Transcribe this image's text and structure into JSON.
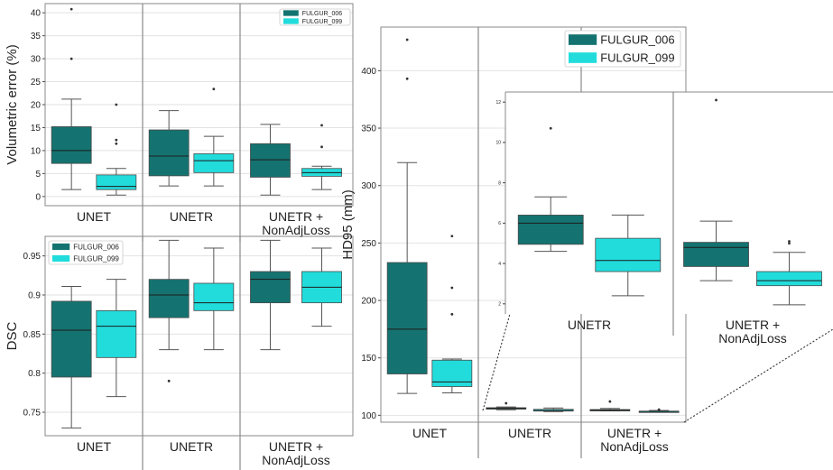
{
  "colors": {
    "s1": "#147370",
    "s2": "#22dcdc",
    "median": "#1b1b1b",
    "whisker": "#555555",
    "frame": "#888888",
    "grid": "#e2e2e2"
  },
  "chart_data": [
    {
      "type": "box",
      "ylabel": "Volumetric error (%)",
      "ylim": [
        -2,
        42
      ],
      "yticks": [
        0,
        5,
        10,
        15,
        20,
        25,
        30,
        35,
        40
      ],
      "groups": [
        "UNET",
        "UNETR",
        "UNETR +\nNonAdjLoss"
      ],
      "legend": {
        "position": "upper right",
        "entries": [
          "FULGUR_006",
          "FULGUR_099"
        ]
      },
      "series": [
        {
          "name": "FULGUR_006",
          "boxes": [
            {
              "group": "UNET",
              "whislo": 1.5,
              "q1": 7.2,
              "med": 10,
              "q3": 15.2,
              "whishi": 21.2,
              "fliers": [
                30,
                40.8
              ]
            },
            {
              "group": "UNETR",
              "whislo": 2.3,
              "q1": 4.5,
              "med": 8.8,
              "q3": 14.5,
              "whishi": 18.7,
              "fliers": []
            },
            {
              "group": "UNETR +\nNonAdjLoss",
              "whislo": 0.3,
              "q1": 4.2,
              "med": 8,
              "q3": 11.5,
              "whishi": 15.7,
              "fliers": []
            }
          ]
        },
        {
          "name": "FULGUR_099",
          "boxes": [
            {
              "group": "UNET",
              "whislo": 0.3,
              "q1": 1.5,
              "med": 2.2,
              "q3": 4.7,
              "whishi": 6.1,
              "fliers": [
                11.5,
                12.3,
                20
              ]
            },
            {
              "group": "UNETR",
              "whislo": 2.3,
              "q1": 5.2,
              "med": 7.8,
              "q3": 9.3,
              "whishi": 13.1,
              "fliers": [
                23.4
              ]
            },
            {
              "group": "UNETR +\nNonAdjLoss",
              "whislo": 1.5,
              "q1": 4.4,
              "med": 5.2,
              "q3": 6.1,
              "whishi": 6.6,
              "fliers": [
                10.8,
                15.5
              ]
            }
          ]
        }
      ]
    },
    {
      "type": "box",
      "ylabel": "DSC",
      "ylim": [
        0.72,
        0.975
      ],
      "yticks": [
        0.75,
        0.8,
        0.85,
        0.9,
        0.95
      ],
      "ytick_labels": [
        "0.75",
        "0.8",
        "0.85",
        "0.9",
        "0.95"
      ],
      "groups": [
        "UNET",
        "UNETR",
        "UNETR +\nNonAdjLoss"
      ],
      "legend": {
        "position": "upper left",
        "entries": [
          "FULGUR_006",
          "FULGUR_099"
        ]
      },
      "series": [
        {
          "name": "FULGUR_006",
          "boxes": [
            {
              "group": "UNET",
              "whislo": 0.73,
              "q1": 0.795,
              "med": 0.855,
              "q3": 0.892,
              "whishi": 0.911,
              "fliers": []
            },
            {
              "group": "UNETR",
              "whislo": 0.83,
              "q1": 0.871,
              "med": 0.9,
              "q3": 0.92,
              "whishi": 0.97,
              "fliers": [
                0.79
              ]
            },
            {
              "group": "UNETR +\nNonAdjLoss",
              "whislo": 0.83,
              "q1": 0.89,
              "med": 0.92,
              "q3": 0.93,
              "whishi": 0.97,
              "fliers": []
            }
          ]
        },
        {
          "name": "FULGUR_099",
          "boxes": [
            {
              "group": "UNET",
              "whislo": 0.77,
              "q1": 0.82,
              "med": 0.86,
              "q3": 0.88,
              "whishi": 0.92,
              "fliers": []
            },
            {
              "group": "UNETR",
              "whislo": 0.83,
              "q1": 0.88,
              "med": 0.89,
              "q3": 0.915,
              "whishi": 0.96,
              "fliers": []
            },
            {
              "group": "UNETR +\nNonAdjLoss",
              "whislo": 0.86,
              "q1": 0.89,
              "med": 0.91,
              "q3": 0.93,
              "whishi": 0.96,
              "fliers": []
            }
          ]
        }
      ]
    },
    {
      "type": "box",
      "ylabel": "HD95 (mm)",
      "ylim": [
        94,
        438
      ],
      "yticks": [
        100,
        150,
        200,
        250,
        300,
        350,
        400
      ],
      "groups": [
        "UNET",
        "UNETR",
        "UNETR +\nNonAdjLoss"
      ],
      "legend": {
        "position": "upper right",
        "entries": [
          "FULGUR_006",
          "FULGUR_099"
        ]
      },
      "series": [
        {
          "name": "FULGUR_006",
          "boxes": [
            {
              "group": "UNET",
              "whislo": 119,
              "q1": 136,
              "med": 175,
              "q3": 233,
              "whishi": 320,
              "fliers": [
                393,
                427
              ]
            },
            {
              "group": "UNETR",
              "whislo": 104.8,
              "q1": 105.4,
              "med": 106,
              "q3": 106.6,
              "whishi": 107.3,
              "fliers": [
                110.5
              ]
            },
            {
              "group": "UNETR +\nNonAdjLoss",
              "whislo": 103.8,
              "q1": 104.3,
              "med": 104.5,
              "q3": 105,
              "whishi": 106,
              "fliers": [
                112
              ]
            }
          ]
        },
        {
          "name": "FULGUR_099",
          "boxes": [
            {
              "group": "UNET",
              "whislo": 119.5,
              "q1": 125,
              "med": 129,
              "q3": 148,
              "whishi": 149,
              "fliers": [
                188,
                211,
                256
              ]
            },
            {
              "group": "UNETR",
              "whislo": 103.2,
              "q1": 103.8,
              "med": 104.1,
              "q3": 105.2,
              "whishi": 106.4,
              "fliers": []
            },
            {
              "group": "UNETR +\nNonAdjLoss",
              "whislo": 102.7,
              "q1": 103.1,
              "med": 103.3,
              "q3": 103.6,
              "whishi": 104.2,
              "fliers": [
                105
              ]
            }
          ]
        }
      ]
    },
    {
      "type": "box",
      "ylabel": "",
      "ylim": [
        1.5,
        12.5
      ],
      "yticks": [
        2,
        4,
        6,
        8,
        10,
        12
      ],
      "groups": [
        "UNETR",
        "UNETR +\nNonAdjLoss"
      ],
      "series": [
        {
          "name": "FULGUR_006",
          "boxes": [
            {
              "group": "UNETR",
              "whislo": 4.6,
              "q1": 4.95,
              "med": 6,
              "q3": 6.4,
              "whishi": 7.3,
              "fliers": [
                10.7
              ]
            },
            {
              "group": "UNETR +\nNonAdjLoss",
              "whislo": 3.15,
              "q1": 3.85,
              "med": 4.8,
              "q3": 5.05,
              "whishi": 6.1,
              "fliers": [
                12.1
              ]
            }
          ]
        },
        {
          "name": "FULGUR_099",
          "boxes": [
            {
              "group": "UNETR",
              "whislo": 2.4,
              "q1": 3.6,
              "med": 4.15,
              "q3": 5.25,
              "whishi": 6.4,
              "fliers": []
            },
            {
              "group": "UNETR +\nNonAdjLoss",
              "whislo": 1.95,
              "q1": 2.9,
              "med": 3.15,
              "q3": 3.6,
              "whishi": 4.55,
              "fliers": [
                5,
                5.1
              ]
            }
          ]
        }
      ]
    }
  ]
}
